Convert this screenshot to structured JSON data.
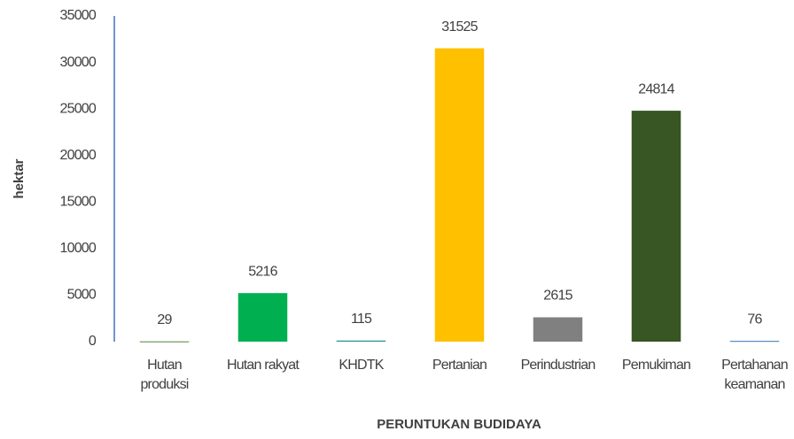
{
  "chart_data": {
    "type": "bar",
    "categories": [
      "Hutan produksi",
      "Hutan rakyat",
      "KHDTK",
      "Pertanian",
      "Perindustrian",
      "Pemukiman",
      "Pertahanan keamanan"
    ],
    "values": [
      29,
      5216,
      115,
      31525,
      2615,
      24814,
      76
    ],
    "colors": [
      "#548235",
      "#00b050",
      "#1f8f8f",
      "#ffc000",
      "#808080",
      "#375623",
      "#2e75b6"
    ],
    "x_label": "PERUNTUKAN BUDIDAYA",
    "y_label": "hektar",
    "ylim": [
      0,
      35000
    ],
    "yticks": [
      0,
      5000,
      10000,
      15000,
      20000,
      25000,
      30000,
      35000
    ],
    "grid": false
  }
}
